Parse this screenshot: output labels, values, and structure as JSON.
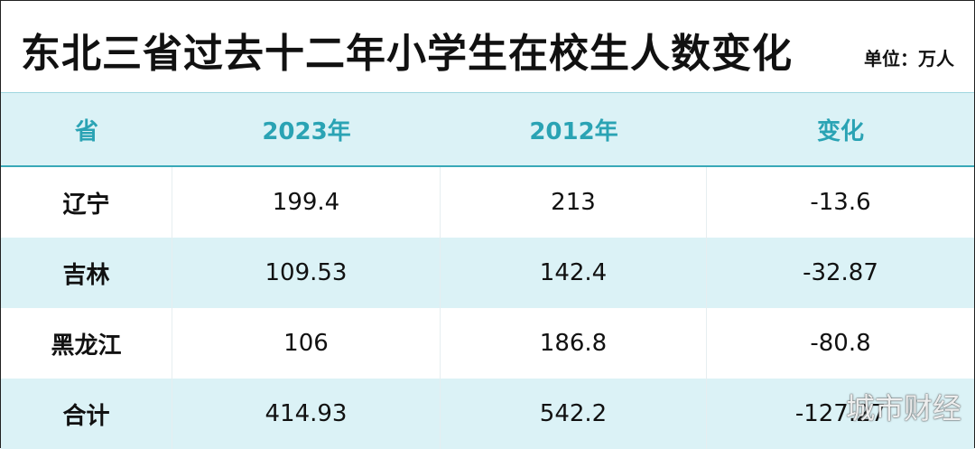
{
  "header": {
    "title": "东北三省过去十二年小学生在校生人数变化",
    "unit": "单位：万人"
  },
  "table": {
    "columns": [
      "省",
      "2023年",
      "2012年",
      "变化"
    ],
    "rows": [
      [
        "辽宁",
        "199.4",
        "213",
        "-13.6"
      ],
      [
        "吉林",
        "109.53",
        "142.4",
        "-32.87"
      ],
      [
        "黑龙江",
        "106",
        "186.8",
        "-80.8"
      ],
      [
        "合计",
        "414.93",
        "542.2",
        "-127.27"
      ]
    ]
  },
  "watermark": "城市财经"
}
